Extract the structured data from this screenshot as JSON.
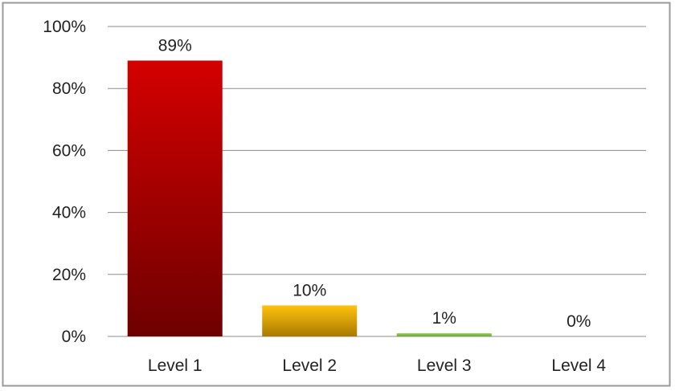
{
  "chart_data": {
    "type": "bar",
    "categories": [
      "Level 1",
      "Level 2",
      "Level 3",
      "Level 4"
    ],
    "values": [
      89,
      10,
      1,
      0
    ],
    "data_labels": [
      "89%",
      "10%",
      "1%",
      "0%"
    ],
    "yticks": [
      "0%",
      "20%",
      "40%",
      "60%",
      "80%",
      "100%"
    ],
    "ylim": [
      0,
      100
    ],
    "grid": true,
    "legend": "none",
    "bar_colors": [
      {
        "top": "#d40000",
        "bottom": "#6e0000"
      },
      {
        "top": "#ffc20e",
        "bottom": "#a87a00"
      },
      {
        "top": "#8fce52",
        "bottom": "#6aa63a"
      },
      {
        "top": "#8fce52",
        "bottom": "#6aa63a"
      }
    ],
    "frame_color": "#9a9a9a"
  }
}
